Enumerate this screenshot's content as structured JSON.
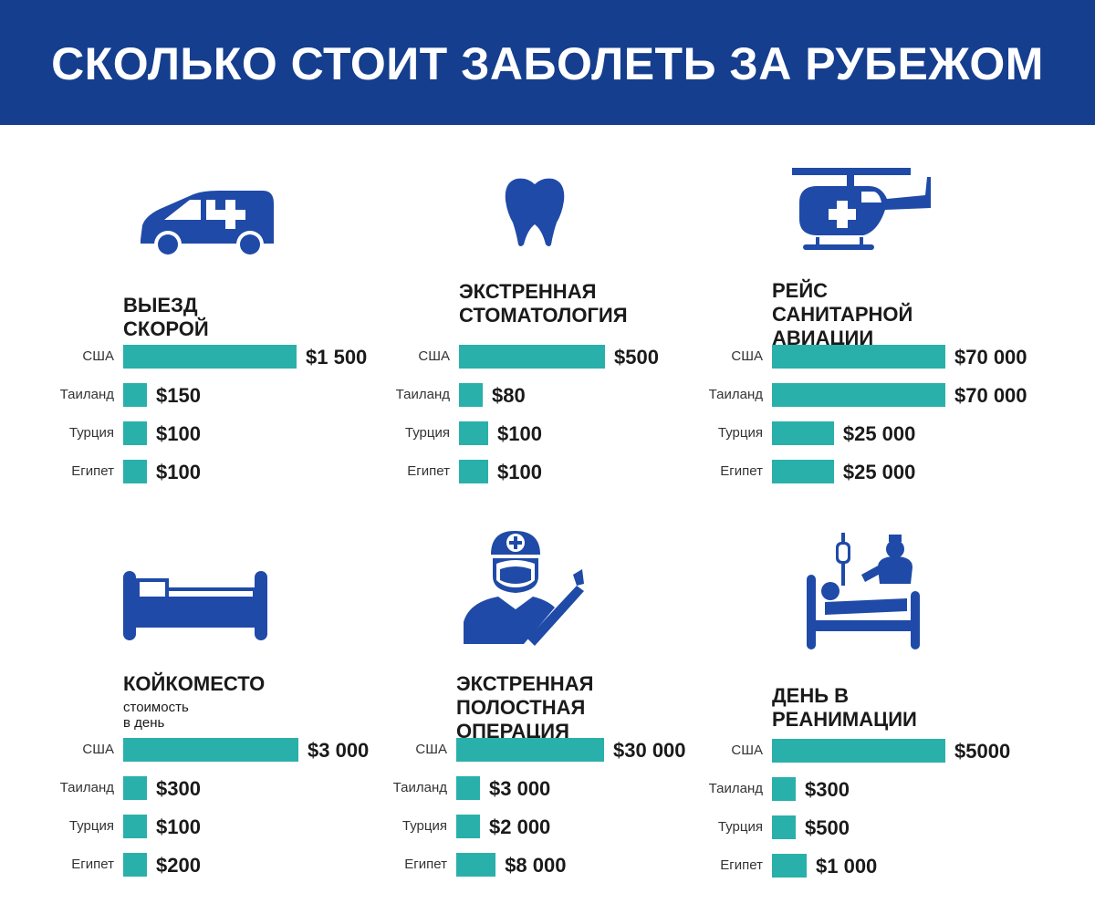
{
  "title": "СКОЛЬКО СТОИТ ЗАБОЛЕТЬ ЗА РУБЕЖОМ",
  "colors": {
    "header": "#153e8e",
    "bar": "#2ab0aa",
    "icon": "#1f4aa8"
  },
  "chart_data": [
    {
      "type": "bar",
      "title": "ВЫЕЗД СКОРОЙ",
      "subtitle": "",
      "icon": "ambulance-icon",
      "categories": [
        "США",
        "Таиланд",
        "Турция",
        "Египет"
      ],
      "values": [
        1500,
        150,
        100,
        100
      ],
      "value_labels": [
        "$1 500",
        "$150",
        "$100",
        "$100"
      ]
    },
    {
      "type": "bar",
      "title": "ЭКСТРЕННАЯ\nСТОМАТОЛОГИЯ",
      "subtitle": "",
      "icon": "tooth-icon",
      "categories": [
        "США",
        "Таиланд",
        "Турция",
        "Египет"
      ],
      "values": [
        500,
        80,
        100,
        100
      ],
      "value_labels": [
        "$500",
        "$80",
        "$100",
        "$100"
      ]
    },
    {
      "type": "bar",
      "title": "РЕЙС САНИТАРНОЙ\nАВИАЦИИ",
      "subtitle": "",
      "icon": "helicopter-icon",
      "categories": [
        "США",
        "Таиланд",
        "Турция",
        "Египет"
      ],
      "values": [
        70000,
        70000,
        25000,
        25000
      ],
      "value_labels": [
        "$70 000",
        "$70 000",
        "$25 000",
        "$25 000"
      ]
    },
    {
      "type": "bar",
      "title": "КОЙКОМЕСТО",
      "subtitle": "стоимость в день",
      "icon": "hospital-bed-icon",
      "categories": [
        "США",
        "Таиланд",
        "Турция",
        "Египет"
      ],
      "values": [
        3000,
        300,
        100,
        200
      ],
      "value_labels": [
        "$3 000",
        "$300",
        "$100",
        "$200"
      ]
    },
    {
      "type": "bar",
      "title": "ЭКСТРЕННАЯ\nПОЛОСТНАЯ ОПЕРАЦИЯ",
      "subtitle": "",
      "icon": "surgeon-icon",
      "categories": [
        "США",
        "Таиланд",
        "Турция",
        "Египет"
      ],
      "values": [
        30000,
        3000,
        2000,
        8000
      ],
      "value_labels": [
        "$30 000",
        "$3 000",
        "$2 000",
        "$8 000"
      ]
    },
    {
      "type": "bar",
      "title": "ДЕНЬ В РЕАНИМАЦИИ",
      "subtitle": "",
      "icon": "intensive-care-icon",
      "categories": [
        "США",
        "Таиланд",
        "Турция",
        "Египет"
      ],
      "values": [
        5000,
        300,
        500,
        1000
      ],
      "value_labels": [
        "$5000",
        "$300",
        "$500",
        "$1 000"
      ]
    }
  ]
}
